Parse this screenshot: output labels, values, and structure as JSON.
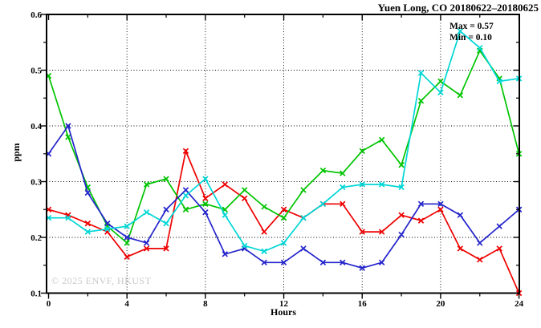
{
  "watermark": "© 2025 ENVF, HKUST",
  "chart_data": {
    "type": "line",
    "title": "Yuen Long, CO 20180622–20180625",
    "xlabel": "Hours",
    "ylabel": "ppm",
    "xlim": [
      0,
      24
    ],
    "ylim": [
      0.1,
      0.6
    ],
    "x_major_ticks": [
      0,
      4,
      8,
      12,
      16,
      20,
      24
    ],
    "x_minor_ticks": [
      2,
      6,
      10,
      14,
      18,
      22
    ],
    "y_major_ticks": [
      0.1,
      0.2,
      0.3,
      0.4,
      0.5,
      0.6
    ],
    "y_minor_ticks": [
      0.15,
      0.25,
      0.35,
      0.45,
      0.55
    ],
    "grid_x": [
      4,
      8,
      12,
      16,
      20
    ],
    "grid_y": [
      0.2,
      0.3,
      0.4,
      0.5
    ],
    "grid_style": "dotted",
    "legend_position": "none",
    "marker": "x",
    "annotations": {
      "max": "Max = 0.57",
      "min": "Min = 0.10"
    },
    "x": [
      0,
      1,
      2,
      3,
      4,
      5,
      6,
      7,
      8,
      9,
      10,
      11,
      12,
      13,
      14,
      15,
      16,
      17,
      18,
      19,
      20,
      21,
      22,
      23,
      24
    ],
    "series": [
      {
        "name": "series-red",
        "color": "#ee0000",
        "values": [
          0.25,
          0.24,
          0.225,
          0.21,
          0.165,
          0.18,
          0.18,
          0.355,
          0.27,
          0.295,
          0.27,
          0.21,
          0.25,
          0.235,
          0.26,
          0.26,
          0.21,
          0.21,
          0.24,
          0.23,
          0.25,
          0.18,
          0.16,
          0.18,
          0.1
        ]
      },
      {
        "name": "series-green",
        "color": "#00c400",
        "values": [
          0.49,
          0.38,
          0.29,
          0.22,
          0.19,
          0.295,
          0.305,
          0.25,
          0.26,
          0.25,
          0.285,
          0.255,
          0.235,
          0.285,
          0.32,
          0.315,
          0.355,
          0.375,
          0.33,
          0.445,
          0.48,
          0.455,
          0.535,
          0.485,
          0.35
        ]
      },
      {
        "name": "series-blue",
        "color": "#2424cc",
        "values": [
          0.35,
          0.4,
          0.28,
          0.225,
          0.2,
          0.19,
          0.25,
          0.285,
          0.245,
          0.17,
          0.18,
          0.155,
          0.155,
          0.18,
          0.155,
          0.155,
          0.145,
          0.155,
          0.205,
          0.26,
          0.26,
          0.24,
          0.19,
          0.22,
          0.25
        ]
      },
      {
        "name": "series-cyan",
        "color": "#00d6d6",
        "values": [
          0.235,
          0.235,
          0.21,
          0.215,
          0.22,
          0.245,
          0.225,
          0.275,
          0.305,
          0.24,
          0.185,
          0.175,
          0.19,
          0.235,
          0.26,
          0.29,
          0.295,
          0.295,
          0.29,
          0.495,
          0.46,
          0.57,
          0.54,
          0.48,
          0.485
        ]
      }
    ]
  }
}
